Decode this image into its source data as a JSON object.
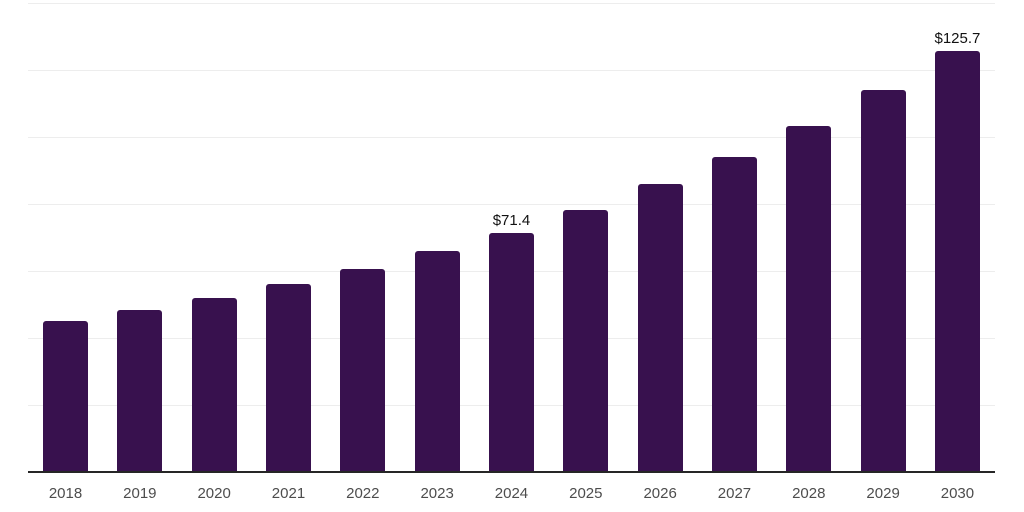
{
  "chart_data": {
    "type": "bar",
    "title": "",
    "xlabel": "",
    "ylabel": "",
    "categories": [
      "2018",
      "2019",
      "2020",
      "2021",
      "2022",
      "2023",
      "2024",
      "2025",
      "2026",
      "2027",
      "2028",
      "2029",
      "2030"
    ],
    "values": [
      45.2,
      48.5,
      52.0,
      56.0,
      60.6,
      66.1,
      71.4,
      78.2,
      85.9,
      93.9,
      103.2,
      113.9,
      125.7
    ],
    "data_labels": [
      "",
      "",
      "",
      "",
      "",
      "",
      "$71.4",
      "",
      "",
      "",
      "",
      "",
      "$125.7"
    ],
    "ylim": [
      0,
      140
    ],
    "gridline_step": 20,
    "grid": "horizontal",
    "legend_position": "none",
    "colors": {
      "bar": "#38114E",
      "axis_line": "#262626",
      "gridline": "#ededed",
      "tick_label": "#4d4d4d",
      "data_label": "#111111",
      "background": "#ffffff"
    }
  }
}
